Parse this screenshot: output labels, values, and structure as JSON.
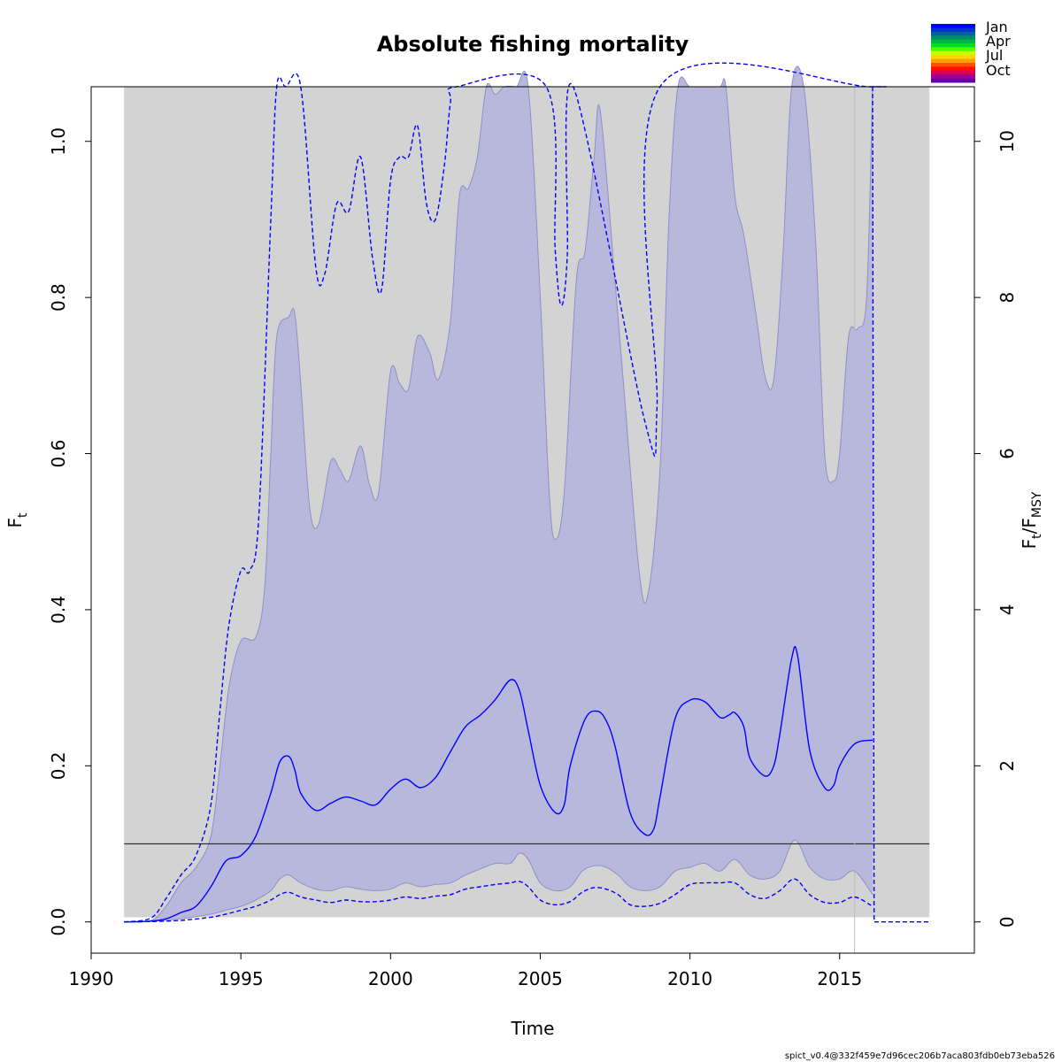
{
  "chart_data": {
    "type": "line",
    "title": "Absolute fishing mortality",
    "xlabel": "Time",
    "ylabel": "F",
    "ylabel_sub": "t",
    "y2label_parts": [
      "F",
      "t",
      "/F",
      "MSY"
    ],
    "xlim": [
      1990,
      2019.5
    ],
    "ylim": [
      -0.04,
      1.07
    ],
    "y2lim": [
      -0.4,
      10.7
    ],
    "xticks": [
      1990,
      1995,
      2000,
      2005,
      2010,
      2015
    ],
    "xtick_labels": [
      "1990",
      "1995",
      "2000",
      "2005",
      "2010",
      "2015"
    ],
    "yticks": [
      0.0,
      0.2,
      0.4,
      0.6,
      0.8,
      1.0
    ],
    "ytick_labels": [
      "0.0",
      "0.2",
      "0.4",
      "0.6",
      "0.8",
      "1.0"
    ],
    "y2ticks": [
      0,
      2,
      4,
      6,
      8,
      10
    ],
    "y2tick_labels": [
      "0",
      "2",
      "4",
      "6",
      "8",
      "10"
    ],
    "fmsy_line": 0.1,
    "grey_band": {
      "x": [
        1991.1,
        2018
      ],
      "y": [
        0.006,
        1.07
      ]
    },
    "vline_x": 2015.5,
    "colors": {
      "series": "#0000ff",
      "ci_fill": "#b8b8dd",
      "band": "#d3d3d3",
      "ref_line": "#333333",
      "vline": "#bbbbbb"
    },
    "series": [
      {
        "role": "estimate",
        "x": [
          1991.1,
          1992,
          1992.5,
          1993,
          1993.5,
          1994,
          1994.5,
          1995,
          1995.5,
          1996,
          1996.3,
          1996.6,
          1996.8,
          1997,
          1997.5,
          1998,
          1998.5,
          1999,
          1999.5,
          2000,
          2000.5,
          2001,
          2001.5,
          2002,
          2002.5,
          2003,
          2003.5,
          2004,
          2004.3,
          2004.6,
          2005,
          2005.5,
          2005.8,
          2006,
          2006.5,
          2006.9,
          2007.2,
          2007.5,
          2008,
          2008.5,
          2008.8,
          2009,
          2009.5,
          2010,
          2010.5,
          2011,
          2011.3,
          2011.5,
          2011.8,
          2012,
          2012.5,
          2012.8,
          2013,
          2013.4,
          2013.6,
          2014,
          2014.5,
          2014.8,
          2015,
          2015.5,
          2016.1
        ],
        "y": [
          0.0,
          0.001,
          0.004,
          0.012,
          0.02,
          0.045,
          0.078,
          0.085,
          0.11,
          0.165,
          0.205,
          0.212,
          0.195,
          0.165,
          0.143,
          0.152,
          0.16,
          0.155,
          0.15,
          0.17,
          0.183,
          0.172,
          0.185,
          0.218,
          0.25,
          0.265,
          0.285,
          0.31,
          0.297,
          0.245,
          0.175,
          0.14,
          0.15,
          0.2,
          0.26,
          0.27,
          0.258,
          0.225,
          0.14,
          0.112,
          0.12,
          0.16,
          0.26,
          0.284,
          0.282,
          0.262,
          0.265,
          0.268,
          0.25,
          0.21,
          0.187,
          0.2,
          0.24,
          0.338,
          0.34,
          0.22,
          0.172,
          0.175,
          0.2,
          0.228,
          0.233
        ]
      },
      {
        "role": "ci_upper_inner",
        "x": [
          1991.1,
          1992,
          1992.5,
          1993,
          1993.5,
          1994,
          1994.3,
          1994.6,
          1995,
          1995.5,
          1995.8,
          1996,
          1996.2,
          1996.6,
          1996.8,
          1997,
          1997.3,
          1997.6,
          1998,
          1998.3,
          1998.6,
          1999,
          1999.3,
          1999.6,
          2000,
          2000.3,
          2000.6,
          2000.9,
          2001.3,
          2001.6,
          2002,
          2002.3,
          2002.6,
          2002.9,
          2003.2,
          2003.5,
          2003.8,
          2004.2,
          2004.6,
          2005,
          2005.3,
          2005.5,
          2005.8,
          2006.2,
          2006.5,
          2006.8,
          2007,
          2007.5,
          2007.8,
          2008.3,
          2008.6,
          2009,
          2009.3,
          2009.6,
          2010,
          2010.5,
          2011,
          2011.2,
          2011.5,
          2011.8,
          2012.2,
          2012.5,
          2012.8,
          2013.1,
          2013.4,
          2013.8,
          2014.2,
          2014.5,
          2014.8,
          2015,
          2015.3,
          2015.6,
          2015.9,
          2016.1
        ],
        "y": [
          0.0,
          0.002,
          0.02,
          0.05,
          0.07,
          0.11,
          0.2,
          0.3,
          0.36,
          0.365,
          0.43,
          0.6,
          0.75,
          0.775,
          0.78,
          0.69,
          0.53,
          0.51,
          0.59,
          0.58,
          0.565,
          0.61,
          0.56,
          0.55,
          0.705,
          0.69,
          0.683,
          0.75,
          0.73,
          0.695,
          0.77,
          0.93,
          0.94,
          0.98,
          1.07,
          1.06,
          1.07,
          1.07,
          1.07,
          0.8,
          0.55,
          0.49,
          0.55,
          0.82,
          0.86,
          0.98,
          1.04,
          0.82,
          0.68,
          0.45,
          0.42,
          0.58,
          0.9,
          1.07,
          1.07,
          1.07,
          1.07,
          1.07,
          0.93,
          0.88,
          0.78,
          0.7,
          0.695,
          0.85,
          1.07,
          1.07,
          0.87,
          0.6,
          0.565,
          0.6,
          0.75,
          0.76,
          0.8,
          1.07
        ]
      },
      {
        "role": "ci_upper_outer",
        "x": [
          1991.1,
          1992,
          1992.5,
          1993,
          1993.5,
          1994,
          1994.3,
          1994.6,
          1995,
          1995.3,
          1995.6,
          1996,
          1996.2,
          1996.5,
          1997,
          1997.5,
          1997.8,
          1998.2,
          1998.6,
          1999,
          1999.4,
          1999.7,
          2000,
          2000.3,
          2000.6,
          2000.9,
          2001.2,
          2001.5,
          2001.8,
          2002,
          2002.2,
          2005.2,
          2005.5,
          2005.7,
          2005.9,
          2006.1,
          2008.5,
          2008.9,
          2009,
          2016.0,
          2016.1
        ],
        "y": [
          0.0,
          0.005,
          0.03,
          0.06,
          0.085,
          0.15,
          0.27,
          0.38,
          0.45,
          0.45,
          0.52,
          0.9,
          1.07,
          1.07,
          1.07,
          0.84,
          0.83,
          0.92,
          0.91,
          0.98,
          0.85,
          0.81,
          0.95,
          0.98,
          0.98,
          1.02,
          0.92,
          0.9,
          0.97,
          1.05,
          1.07,
          1.07,
          0.86,
          0.79,
          0.85,
          1.07,
          0.64,
          0.66,
          1.07,
          1.07,
          1.07
        ]
      },
      {
        "role": "ci_lower_inner",
        "x": [
          1991.1,
          1992,
          1993,
          1994,
          1994.5,
          1995,
          1995.5,
          1996,
          1996.3,
          1996.6,
          1997,
          1997.5,
          1998,
          1998.5,
          1999,
          1999.5,
          2000,
          2000.5,
          2001,
          2001.5,
          2002,
          2002.5,
          2003,
          2003.5,
          2004,
          2004.3,
          2004.6,
          2005,
          2005.5,
          2006,
          2006.4,
          2006.8,
          2007.2,
          2007.6,
          2008,
          2008.5,
          2009,
          2009.5,
          2010,
          2010.5,
          2011,
          2011.5,
          2012,
          2012.5,
          2013,
          2013.5,
          2014,
          2014.5,
          2015,
          2015.5,
          2016.1
        ],
        "y": [
          0.0,
          0.001,
          0.004,
          0.01,
          0.015,
          0.02,
          0.028,
          0.04,
          0.055,
          0.06,
          0.05,
          0.042,
          0.04,
          0.045,
          0.042,
          0.04,
          0.042,
          0.05,
          0.045,
          0.048,
          0.05,
          0.06,
          0.068,
          0.075,
          0.075,
          0.088,
          0.08,
          0.05,
          0.04,
          0.045,
          0.065,
          0.072,
          0.07,
          0.06,
          0.045,
          0.04,
          0.045,
          0.065,
          0.07,
          0.075,
          0.065,
          0.08,
          0.06,
          0.055,
          0.065,
          0.105,
          0.07,
          0.055,
          0.055,
          0.065,
          0.035
        ]
      },
      {
        "role": "ci_lower_outer",
        "x": [
          1991.1,
          1992,
          1993,
          1994,
          1994.5,
          1995,
          1995.5,
          1996,
          1996.3,
          1996.6,
          1997,
          1997.5,
          1998,
          1998.5,
          1999,
          1999.5,
          2000,
          2000.5,
          2001,
          2001.5,
          2002,
          2002.5,
          2003,
          2003.5,
          2004,
          2004.3,
          2004.6,
          2005,
          2005.5,
          2006,
          2006.4,
          2006.8,
          2007.2,
          2007.6,
          2008,
          2008.5,
          2009,
          2009.5,
          2010,
          2010.5,
          2011,
          2011.5,
          2012,
          2012.5,
          2013,
          2013.5,
          2014,
          2014.5,
          2015,
          2015.5,
          2016.1
        ],
        "y": [
          0.0,
          0.0005,
          0.002,
          0.006,
          0.01,
          0.015,
          0.02,
          0.028,
          0.035,
          0.038,
          0.032,
          0.028,
          0.025,
          0.028,
          0.026,
          0.026,
          0.028,
          0.032,
          0.03,
          0.033,
          0.035,
          0.042,
          0.045,
          0.048,
          0.05,
          0.052,
          0.045,
          0.028,
          0.022,
          0.026,
          0.038,
          0.044,
          0.042,
          0.035,
          0.022,
          0.02,
          0.024,
          0.035,
          0.048,
          0.05,
          0.05,
          0.05,
          0.035,
          0.03,
          0.04,
          0.055,
          0.035,
          0.025,
          0.025,
          0.032,
          0.02
        ]
      },
      {
        "role": "forecast",
        "x": [
          2016.1,
          2016.15,
          2018
        ],
        "y": [
          0.06,
          0.0,
          0.0
        ]
      }
    ]
  },
  "legend": {
    "labels": [
      "Jan",
      "Apr",
      "Jul",
      "Oct"
    ],
    "colors": [
      "#0000ff",
      "#0030d0",
      "#0060a0",
      "#008c6c",
      "#00b640",
      "#00e020",
      "#50ff00",
      "#c8ff00",
      "#ffd700",
      "#ffa000",
      "#ff5000",
      "#ff1000",
      "#e00050",
      "#a00090",
      "#6a00a8"
    ]
  },
  "footer": "spict_v0.4@332f459e7d96cec206b7aca803fdb0eb73eba526"
}
